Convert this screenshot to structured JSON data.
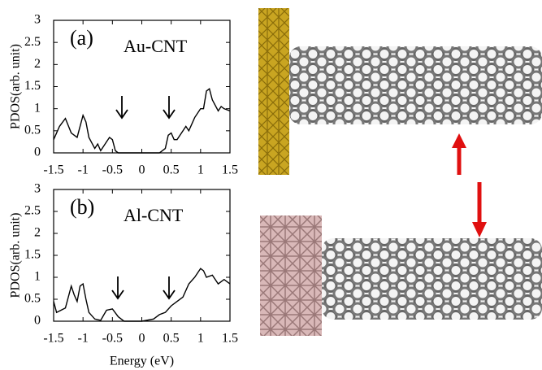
{
  "chart_data": [
    {
      "type": "line",
      "panel_label": "(a)",
      "annotation": "Au-CNT",
      "ylabel": "PDOS(arb. unit)",
      "x": [
        -1.5,
        -1.4,
        -1.3,
        -1.2,
        -1.1,
        -1.0,
        -0.95,
        -0.9,
        -0.8,
        -0.75,
        -0.7,
        -0.6,
        -0.55,
        -0.5,
        -0.45,
        -0.4,
        0,
        0.3,
        0.4,
        0.45,
        0.5,
        0.55,
        0.6,
        0.7,
        0.75,
        0.8,
        0.9,
        1.0,
        1.05,
        1.1,
        1.15,
        1.2,
        1.3,
        1.35,
        1.4,
        1.5
      ],
      "values": [
        0.3,
        0.6,
        0.78,
        0.45,
        0.35,
        0.85,
        0.7,
        0.35,
        0.1,
        0.2,
        0.05,
        0.25,
        0.35,
        0.3,
        0.05,
        0,
        0,
        0,
        0.1,
        0.4,
        0.45,
        0.3,
        0.3,
        0.5,
        0.6,
        0.5,
        0.8,
        1.0,
        1.0,
        1.4,
        1.45,
        1.2,
        0.95,
        1.05,
        1.0,
        0.95
      ],
      "color": "#000000",
      "xlim": [
        -1.5,
        1.5
      ],
      "xticks": [
        -1.5,
        -1,
        -0.5,
        0,
        0.5,
        1,
        1.5
      ],
      "ylim": [
        0,
        3
      ],
      "yticks": [
        0,
        0.5,
        1,
        1.5,
        2,
        2.5,
        3
      ]
    },
    {
      "type": "line",
      "panel_label": "(b)",
      "annotation": "Al-CNT",
      "ylabel": "PDOS(arb. unit)",
      "xlabel": "Energy (eV)",
      "x": [
        -1.5,
        -1.45,
        -1.3,
        -1.2,
        -1.15,
        -1.1,
        -1.05,
        -1.0,
        -0.95,
        -0.9,
        -0.8,
        -0.7,
        -0.6,
        -0.5,
        -0.4,
        -0.3,
        0,
        0.2,
        0.3,
        0.4,
        0.5,
        0.6,
        0.7,
        0.8,
        0.9,
        1.0,
        1.05,
        1.1,
        1.2,
        1.3,
        1.4,
        1.5
      ],
      "values": [
        0.45,
        0.2,
        0.3,
        0.8,
        0.6,
        0.45,
        0.8,
        0.85,
        0.5,
        0.2,
        0.05,
        0.02,
        0.25,
        0.28,
        0.1,
        0,
        0,
        0.05,
        0.15,
        0.2,
        0.35,
        0.45,
        0.55,
        0.85,
        1.0,
        1.2,
        1.15,
        1.0,
        1.05,
        0.85,
        0.95,
        0.85
      ],
      "color": "#000000",
      "xlim": [
        -1.5,
        1.5
      ],
      "xticks": [
        -1.5,
        -1,
        -0.5,
        0,
        0.5,
        1,
        1.5
      ],
      "ylim": [
        0,
        3
      ],
      "yticks": [
        0,
        0.5,
        1,
        1.5,
        2,
        2.5,
        3
      ]
    }
  ]
}
